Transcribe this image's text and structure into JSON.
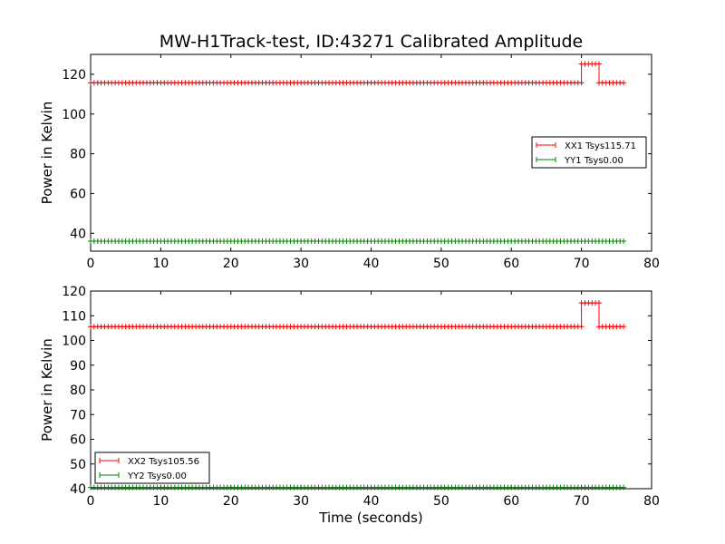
{
  "chart_data": [
    {
      "type": "line",
      "title": "MW-H1Track-test, ID:43271 Calibrated Amplitude",
      "xlabel": "",
      "ylabel": "Power in Kelvin",
      "xlim": [
        0,
        80
      ],
      "ylim": [
        31,
        130
      ],
      "xticks": [
        0,
        10,
        20,
        30,
        40,
        50,
        60,
        70,
        80
      ],
      "yticks": [
        40,
        60,
        80,
        100,
        120
      ],
      "grid": false,
      "legend_position": "center-right",
      "marker": "+",
      "series": [
        {
          "name": "XX1 Tsys115.71",
          "color": "#ff0000",
          "segments": [
            {
              "x_start": 0,
              "x_end": 70,
              "value": 115.7
            },
            {
              "x_start": 70,
              "x_end": 72.5,
              "value": 125.2
            },
            {
              "x_start": 72.5,
              "x_end": 76,
              "value": 115.7
            }
          ]
        },
        {
          "name": "YY1 Tsys0.00",
          "color": "#008000",
          "segments": [
            {
              "x_start": 0,
              "x_end": 76,
              "value": 36
            }
          ]
        }
      ]
    },
    {
      "type": "line",
      "title": "",
      "xlabel": "Time (seconds)",
      "ylabel": "Power in Kelvin",
      "xlim": [
        0,
        80
      ],
      "ylim": [
        40,
        120
      ],
      "xticks": [
        0,
        10,
        20,
        30,
        40,
        50,
        60,
        70,
        80
      ],
      "yticks": [
        40,
        50,
        60,
        70,
        80,
        90,
        100,
        110,
        120
      ],
      "grid": false,
      "legend_position": "lower-left",
      "marker": "+",
      "series": [
        {
          "name": "XX2 Tsys105.56",
          "color": "#ff0000",
          "segments": [
            {
              "x_start": 0,
              "x_end": 70,
              "value": 105.6
            },
            {
              "x_start": 70,
              "x_end": 72.5,
              "value": 115.2
            },
            {
              "x_start": 72.5,
              "x_end": 76,
              "value": 105.6
            }
          ]
        },
        {
          "name": "YY2 Tsys0.00",
          "color": "#008000",
          "segments": [
            {
              "x_start": 0,
              "x_end": 76,
              "value": 40.5
            }
          ]
        }
      ]
    }
  ]
}
